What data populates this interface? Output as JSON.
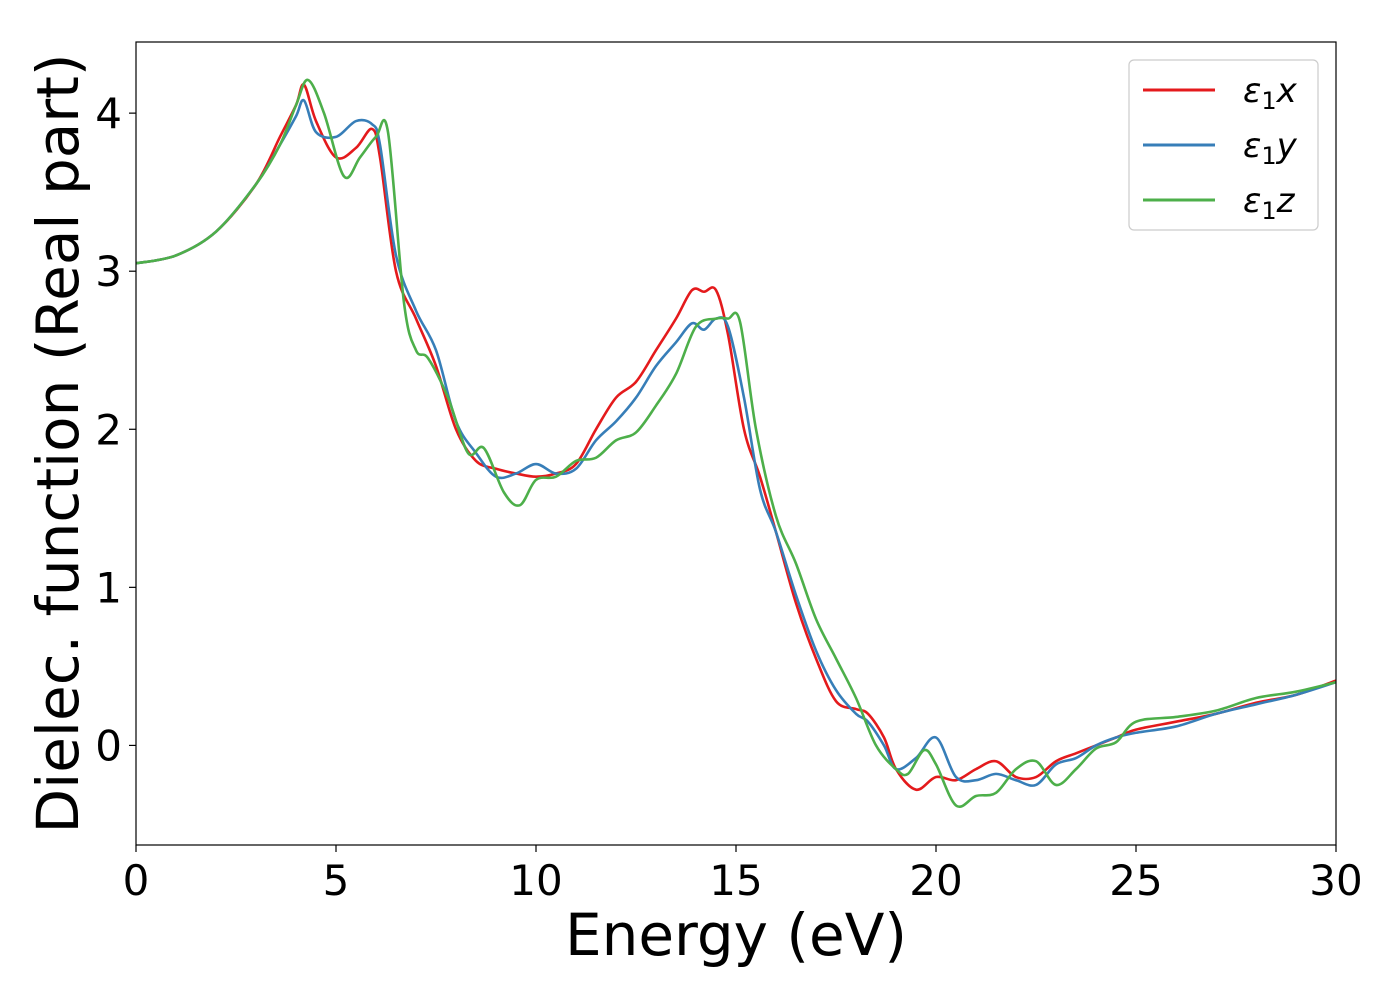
{
  "chart_data": {
    "type": "line",
    "title": "",
    "xlabel": "Energy (eV)",
    "ylabel": "Dielec. function (Real part)",
    "xlim": [
      0,
      30
    ],
    "ylim": [
      -0.63,
      4.45
    ],
    "xticks": [
      0,
      5,
      10,
      15,
      20,
      25,
      30
    ],
    "yticks": [
      0,
      1,
      2,
      3,
      4
    ],
    "grid": false,
    "legend_position": "top-right",
    "series": [
      {
        "name": "ε₁x",
        "legend_main": "ε",
        "legend_sub": "1",
        "legend_suffix": "x",
        "color": "#e41a1c",
        "x": [
          0,
          1,
          2,
          3,
          3.6,
          4.0,
          4.2,
          4.5,
          5.0,
          5.5,
          5.9,
          6.1,
          6.5,
          7.0,
          7.5,
          8.0,
          8.5,
          9.0,
          9.5,
          10.0,
          10.5,
          11.0,
          11.5,
          12.0,
          12.5,
          13.0,
          13.5,
          13.9,
          14.2,
          14.5,
          14.8,
          15.2,
          15.6,
          16.0,
          16.5,
          17.0,
          17.5,
          18.0,
          18.3,
          18.7,
          19.0,
          19.5,
          20.0,
          20.5,
          21.0,
          21.5,
          22.0,
          22.5,
          23.0,
          23.5,
          24.0,
          24.5,
          25.0,
          26.0,
          27.0,
          28.0,
          29.0,
          30.0
        ],
        "y": [
          3.05,
          3.1,
          3.25,
          3.55,
          3.85,
          4.05,
          4.18,
          3.95,
          3.72,
          3.78,
          3.9,
          3.72,
          3.0,
          2.7,
          2.4,
          2.0,
          1.8,
          1.75,
          1.72,
          1.7,
          1.72,
          1.78,
          2.0,
          2.2,
          2.3,
          2.5,
          2.7,
          2.88,
          2.87,
          2.88,
          2.6,
          2.0,
          1.7,
          1.35,
          0.9,
          0.55,
          0.28,
          0.23,
          0.2,
          0.05,
          -0.15,
          -0.28,
          -0.2,
          -0.22,
          -0.15,
          -0.1,
          -0.2,
          -0.2,
          -0.1,
          -0.05,
          0.0,
          0.05,
          0.1,
          0.15,
          0.2,
          0.27,
          0.32,
          0.41
        ]
      },
      {
        "name": "ε₁y",
        "legend_main": "ε",
        "legend_sub": "1",
        "legend_suffix": "y",
        "color": "#377eb8",
        "x": [
          0,
          1,
          2,
          3,
          3.6,
          4.0,
          4.2,
          4.5,
          5.0,
          5.5,
          5.9,
          6.1,
          6.5,
          7.0,
          7.5,
          8.0,
          8.5,
          9.0,
          9.5,
          10.0,
          10.5,
          11.0,
          11.5,
          12.0,
          12.5,
          13.0,
          13.5,
          13.9,
          14.2,
          14.5,
          14.8,
          15.2,
          15.6,
          16.0,
          16.5,
          17.0,
          17.5,
          18.0,
          18.3,
          18.7,
          19.0,
          19.5,
          20.0,
          20.5,
          21.0,
          21.5,
          22.0,
          22.5,
          23.0,
          23.5,
          24.0,
          24.5,
          25.0,
          26.0,
          27.0,
          28.0,
          29.0,
          30.0
        ],
        "y": [
          3.05,
          3.1,
          3.25,
          3.55,
          3.8,
          3.98,
          4.08,
          3.88,
          3.85,
          3.95,
          3.93,
          3.8,
          3.1,
          2.75,
          2.5,
          2.05,
          1.85,
          1.7,
          1.72,
          1.78,
          1.72,
          1.75,
          1.93,
          2.05,
          2.2,
          2.4,
          2.55,
          2.67,
          2.63,
          2.7,
          2.65,
          2.2,
          1.62,
          1.35,
          0.95,
          0.6,
          0.35,
          0.2,
          0.15,
          0.0,
          -0.15,
          -0.08,
          0.05,
          -0.2,
          -0.22,
          -0.18,
          -0.22,
          -0.25,
          -0.12,
          -0.08,
          0.0,
          0.05,
          0.08,
          0.12,
          0.2,
          0.26,
          0.32,
          0.4
        ]
      },
      {
        "name": "ε₁z",
        "legend_main": "ε",
        "legend_sub": "1",
        "legend_suffix": "z",
        "color": "#4daf4a",
        "x": [
          0,
          1,
          2,
          3,
          3.6,
          4.0,
          4.3,
          4.7,
          5.2,
          5.6,
          6.0,
          6.3,
          6.7,
          7.0,
          7.3,
          7.8,
          8.3,
          8.7,
          9.2,
          9.6,
          10.0,
          10.5,
          11.0,
          11.5,
          12.0,
          12.5,
          13.0,
          13.5,
          14.0,
          14.5,
          14.8,
          15.1,
          15.5,
          16.0,
          16.5,
          17.0,
          17.5,
          18.0,
          18.5,
          19.0,
          19.3,
          19.7,
          20.0,
          20.5,
          21.0,
          21.5,
          22.0,
          22.5,
          23.0,
          23.5,
          24.0,
          24.5,
          25.0,
          26.0,
          27.0,
          28.0,
          29.0,
          30.0
        ],
        "y": [
          3.05,
          3.1,
          3.25,
          3.55,
          3.8,
          4.05,
          4.21,
          4.0,
          3.6,
          3.72,
          3.85,
          3.88,
          2.8,
          2.5,
          2.45,
          2.2,
          1.85,
          1.88,
          1.6,
          1.52,
          1.68,
          1.7,
          1.8,
          1.82,
          1.93,
          1.98,
          2.15,
          2.35,
          2.65,
          2.7,
          2.7,
          2.68,
          2.0,
          1.45,
          1.15,
          0.8,
          0.55,
          0.3,
          0.0,
          -0.15,
          -0.18,
          -0.03,
          -0.12,
          -0.38,
          -0.32,
          -0.3,
          -0.15,
          -0.1,
          -0.25,
          -0.15,
          -0.02,
          0.02,
          0.15,
          0.18,
          0.22,
          0.3,
          0.34,
          0.4
        ]
      }
    ]
  }
}
